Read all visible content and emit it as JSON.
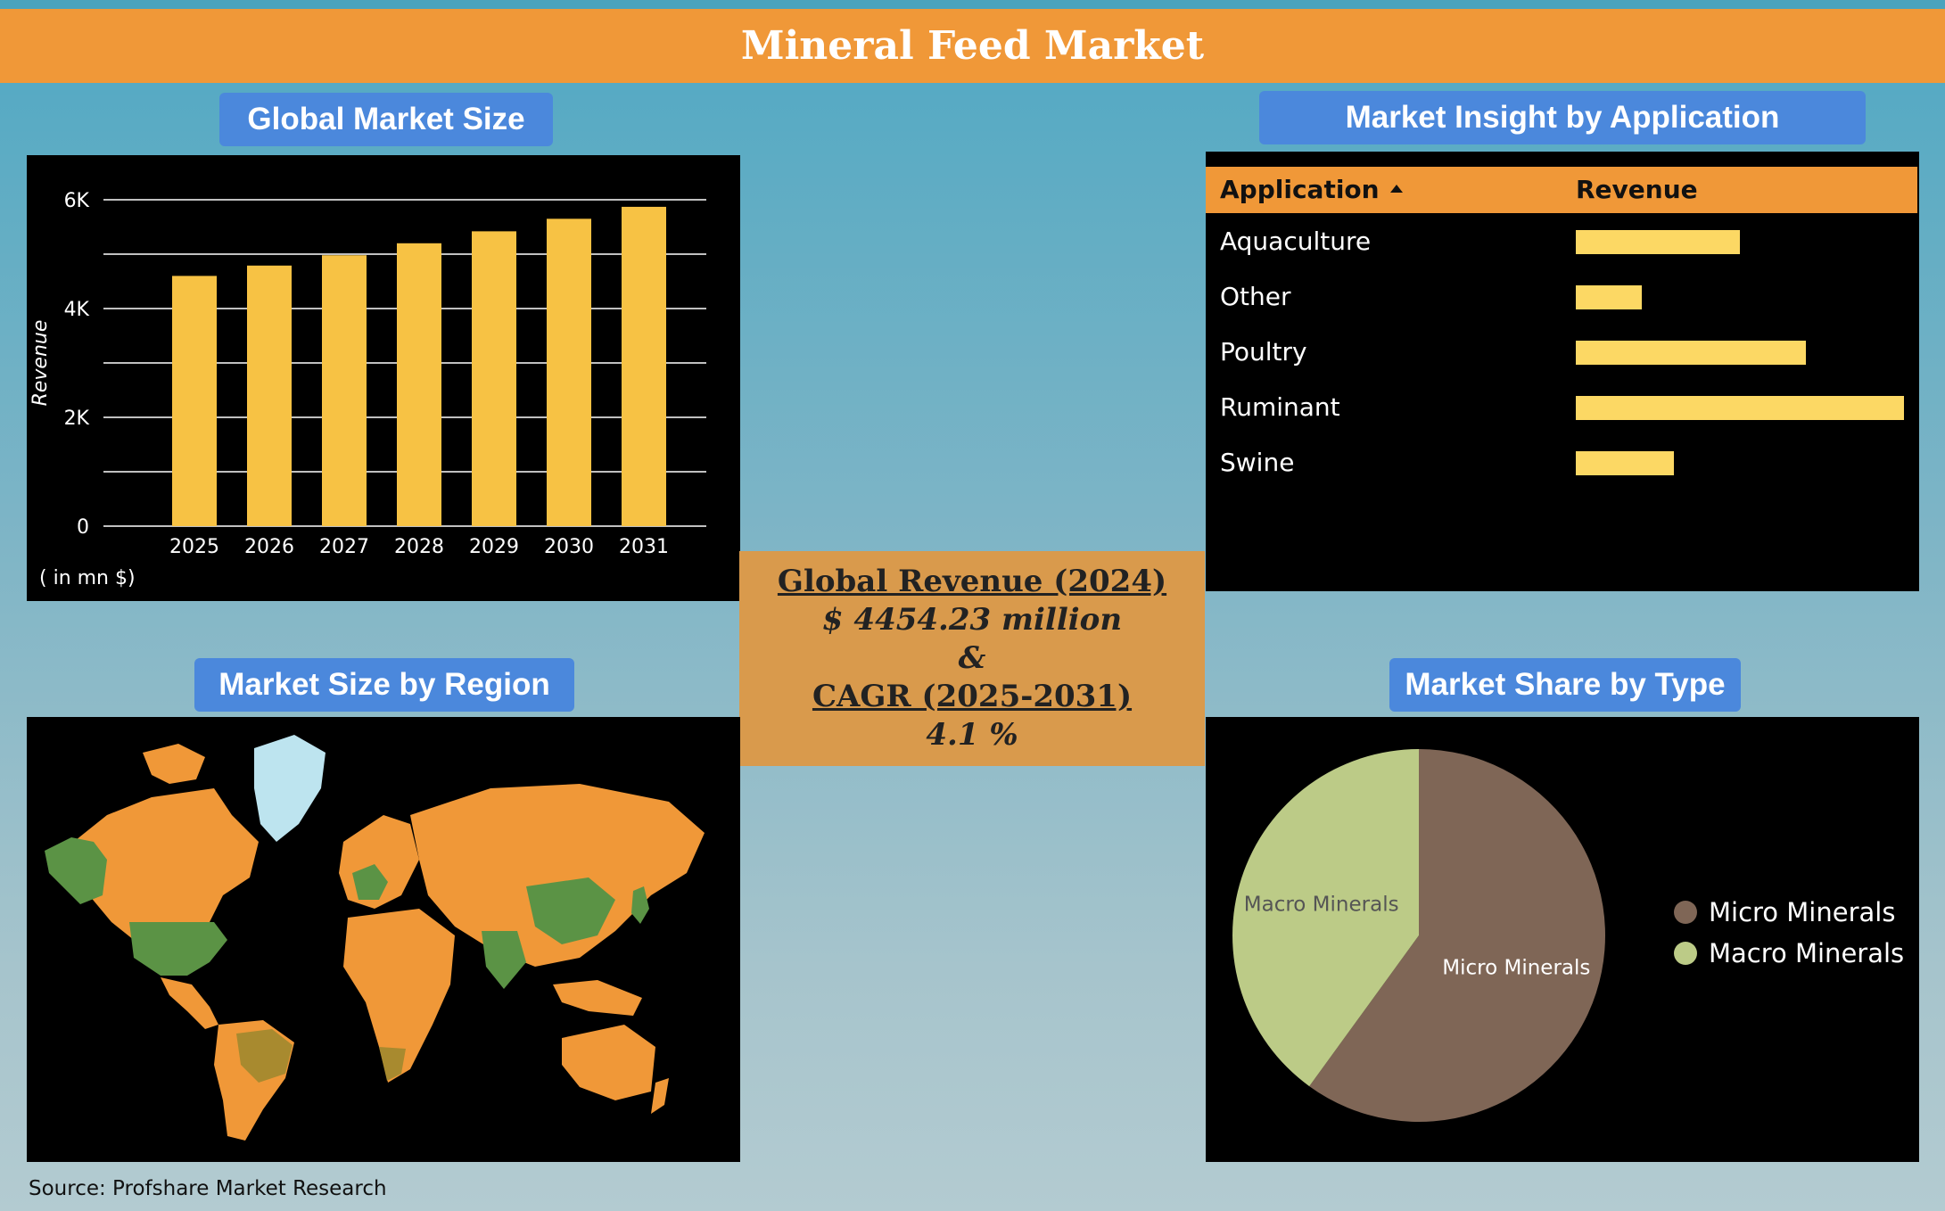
{
  "header": {
    "title": "Mineral Feed Market"
  },
  "panels": {
    "market_size": "Global Market Size",
    "application": "Market Insight by Application",
    "region": "Market Size by Region",
    "type": "Market Share by Type"
  },
  "center": {
    "revenue_label": "Global Revenue (2024)",
    "revenue_value": "$ 4454.23 million",
    "amp": "&",
    "cagr_label": "CAGR (2025-2031)",
    "cagr_value": "4.1 %"
  },
  "source": "Source: Profshare Market Research",
  "colors": {
    "bar": "#f7c244",
    "app_bar": "#fcd864",
    "micro": "#7f6656",
    "macro": "#bccb87",
    "land": "#f09838",
    "highlight": "#5b9345",
    "greenland": "#bde4ef"
  },
  "chart_data": [
    {
      "type": "bar",
      "title": "Global Market Size",
      "categories": [
        "2025",
        "2026",
        "2027",
        "2028",
        "2029",
        "2030",
        "2031"
      ],
      "values": [
        4600,
        4790,
        4980,
        5200,
        5420,
        5650,
        5870
      ],
      "ylabel": "Revenue",
      "unit_note": "( in mn $)",
      "ylim": [
        0,
        6000
      ],
      "yticks": [
        "0",
        "2K",
        "4K",
        "6K"
      ],
      "grid": true
    },
    {
      "type": "table",
      "title": "Market Insight by Application",
      "columns": [
        "Application",
        "Revenue"
      ],
      "rows": [
        {
          "label": "Aquaculture",
          "value": 0.5
        },
        {
          "label": "Other",
          "value": 0.2
        },
        {
          "label": "Poultry",
          "value": 0.7
        },
        {
          "label": "Ruminant",
          "value": 1.0
        },
        {
          "label": "Swine",
          "value": 0.3
        }
      ]
    },
    {
      "type": "pie",
      "title": "Market Share by Type",
      "labels": [
        "Micro Minerals",
        "Macro Minerals"
      ],
      "values": [
        60,
        40
      ],
      "legend": "right"
    }
  ]
}
